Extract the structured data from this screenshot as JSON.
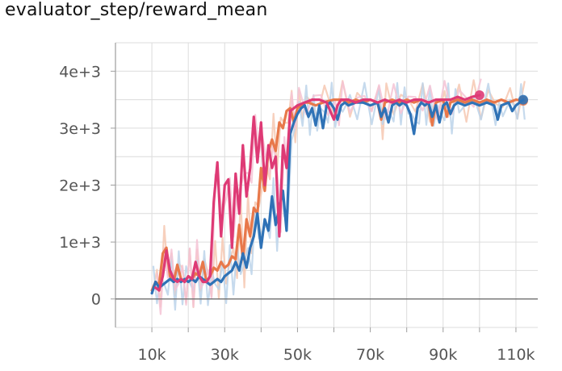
{
  "title": "evaluator_step/reward_mean",
  "colors": {
    "grid": "#dcdcdc",
    "axis": "#9e9e9e",
    "zero_line": "#707070",
    "ticks_text": "#555555",
    "series_blue": "#2f72b6",
    "series_orange": "#e8784a",
    "series_pink": "#de3a75"
  },
  "chart_data": {
    "type": "line",
    "title": "evaluator_step/reward_mean",
    "xlabel": "",
    "ylabel": "",
    "xlim": [
      0,
      116000
    ],
    "ylim": [
      -500,
      4500
    ],
    "grid": true,
    "legend": "none",
    "x_ticks": [
      {
        "value": 10000,
        "label": "10k"
      },
      {
        "value": 30000,
        "label": "30k"
      },
      {
        "value": 50000,
        "label": "50k"
      },
      {
        "value": 70000,
        "label": "70k"
      },
      {
        "value": 90000,
        "label": "90k"
      },
      {
        "value": 110000,
        "label": "110k"
      }
    ],
    "y_ticks": [
      {
        "value": 0,
        "label": "0"
      },
      {
        "value": 1000,
        "label": "1e+3"
      },
      {
        "value": 2000,
        "label": "2e+3"
      },
      {
        "value": 3000,
        "label": "3e+3"
      },
      {
        "value": 4000,
        "label": "4e+3"
      }
    ],
    "series": [
      {
        "color": "#e8784a",
        "raw_color": "#f6c8b2",
        "end_marker": true,
        "points": [
          [
            10000,
            150
          ],
          [
            11000,
            300
          ],
          [
            12000,
            250
          ],
          [
            13000,
            800
          ],
          [
            14000,
            900
          ],
          [
            15000,
            400
          ],
          [
            16000,
            300
          ],
          [
            17000,
            600
          ],
          [
            18000,
            350
          ],
          [
            19000,
            300
          ],
          [
            20000,
            400
          ],
          [
            21000,
            350
          ],
          [
            22000,
            450
          ],
          [
            23000,
            400
          ],
          [
            24000,
            650
          ],
          [
            25000,
            300
          ],
          [
            26000,
            400
          ],
          [
            27000,
            550
          ],
          [
            28000,
            500
          ],
          [
            29000,
            650
          ],
          [
            30000,
            550
          ],
          [
            31000,
            600
          ],
          [
            32000,
            750
          ],
          [
            33000,
            700
          ],
          [
            34000,
            1300
          ],
          [
            35000,
            700
          ],
          [
            36000,
            1400
          ],
          [
            37000,
            1100
          ],
          [
            38000,
            1600
          ],
          [
            39000,
            1500
          ],
          [
            40000,
            2300
          ],
          [
            41000,
            1900
          ],
          [
            42000,
            2600
          ],
          [
            43000,
            2800
          ],
          [
            44000,
            2600
          ],
          [
            45000,
            3100
          ],
          [
            46000,
            3000
          ],
          [
            47000,
            3300
          ],
          [
            48000,
            3350
          ],
          [
            49000,
            3100
          ],
          [
            50000,
            3350
          ],
          [
            51000,
            3400
          ],
          [
            52000,
            3450
          ],
          [
            53000,
            3450
          ],
          [
            55000,
            3400
          ],
          [
            57000,
            3450
          ],
          [
            60000,
            3500
          ],
          [
            62000,
            3500
          ],
          [
            64000,
            3450
          ],
          [
            66000,
            3500
          ],
          [
            68000,
            3450
          ],
          [
            70000,
            3500
          ],
          [
            72000,
            3450
          ],
          [
            73000,
            3150
          ],
          [
            74000,
            3450
          ],
          [
            76000,
            3500
          ],
          [
            78000,
            3450
          ],
          [
            80000,
            3500
          ],
          [
            82000,
            3450
          ],
          [
            84000,
            3500
          ],
          [
            86000,
            3450
          ],
          [
            87000,
            3050
          ],
          [
            88000,
            3450
          ],
          [
            90000,
            3500
          ],
          [
            91000,
            3200
          ],
          [
            92000,
            3450
          ],
          [
            94000,
            3500
          ],
          [
            96000,
            3450
          ],
          [
            98000,
            3500
          ],
          [
            100000,
            3450
          ],
          [
            102000,
            3500
          ],
          [
            104000,
            3450
          ],
          [
            106000,
            3500
          ],
          [
            108000,
            3450
          ],
          [
            110000,
            3500
          ],
          [
            112000,
            3480
          ]
        ]
      },
      {
        "color": "#2f72b6",
        "raw_color": "#bcd3ea",
        "end_marker": true,
        "points": [
          [
            10000,
            100
          ],
          [
            11000,
            300
          ],
          [
            12000,
            200
          ],
          [
            13000,
            250
          ],
          [
            14000,
            300
          ],
          [
            15000,
            350
          ],
          [
            16000,
            300
          ],
          [
            17000,
            350
          ],
          [
            18000,
            300
          ],
          [
            19000,
            350
          ],
          [
            20000,
            300
          ],
          [
            21000,
            350
          ],
          [
            22000,
            300
          ],
          [
            23000,
            400
          ],
          [
            24000,
            350
          ],
          [
            25000,
            300
          ],
          [
            26000,
            250
          ],
          [
            27000,
            300
          ],
          [
            28000,
            350
          ],
          [
            29000,
            300
          ],
          [
            30000,
            400
          ],
          [
            31000,
            450
          ],
          [
            32000,
            500
          ],
          [
            33000,
            650
          ],
          [
            34000,
            500
          ],
          [
            35000,
            800
          ],
          [
            36000,
            550
          ],
          [
            37000,
            900
          ],
          [
            38000,
            1100
          ],
          [
            39000,
            1500
          ],
          [
            40000,
            900
          ],
          [
            41000,
            1400
          ],
          [
            42000,
            1200
          ],
          [
            43000,
            1800
          ],
          [
            44000,
            1300
          ],
          [
            45000,
            1600
          ],
          [
            46000,
            1900
          ],
          [
            47000,
            1200
          ],
          [
            48000,
            2900
          ],
          [
            49000,
            3100
          ],
          [
            50000,
            3250
          ],
          [
            51000,
            3350
          ],
          [
            52000,
            3400
          ],
          [
            53000,
            3200
          ],
          [
            54000,
            3350
          ],
          [
            55000,
            3050
          ],
          [
            56000,
            3400
          ],
          [
            57000,
            3000
          ],
          [
            58000,
            3400
          ],
          [
            59000,
            3450
          ],
          [
            60000,
            3350
          ],
          [
            61000,
            3150
          ],
          [
            62000,
            3400
          ],
          [
            63000,
            3450
          ],
          [
            64000,
            3400
          ],
          [
            66000,
            3450
          ],
          [
            68000,
            3450
          ],
          [
            70000,
            3400
          ],
          [
            72000,
            3450
          ],
          [
            73000,
            3200
          ],
          [
            74000,
            3350
          ],
          [
            75000,
            3100
          ],
          [
            76000,
            3400
          ],
          [
            77000,
            3450
          ],
          [
            78000,
            3400
          ],
          [
            79000,
            3450
          ],
          [
            80000,
            3400
          ],
          [
            81000,
            3250
          ],
          [
            82000,
            2900
          ],
          [
            83000,
            3350
          ],
          [
            84000,
            3450
          ],
          [
            85000,
            3400
          ],
          [
            86000,
            3450
          ],
          [
            87000,
            3200
          ],
          [
            88000,
            3400
          ],
          [
            89000,
            3100
          ],
          [
            90000,
            3400
          ],
          [
            91000,
            3450
          ],
          [
            92000,
            3250
          ],
          [
            93000,
            3400
          ],
          [
            94000,
            3450
          ],
          [
            96000,
            3400
          ],
          [
            98000,
            3450
          ],
          [
            100000,
            3400
          ],
          [
            102000,
            3450
          ],
          [
            104000,
            3400
          ],
          [
            105000,
            3150
          ],
          [
            106000,
            3400
          ],
          [
            108000,
            3450
          ],
          [
            109000,
            3300
          ],
          [
            110000,
            3400
          ],
          [
            111000,
            3450
          ],
          [
            112000,
            3500
          ]
        ]
      },
      {
        "color": "#de3a75",
        "raw_color": "#f4c3d5",
        "end_marker": true,
        "points": [
          [
            11000,
            200
          ],
          [
            12000,
            150
          ],
          [
            13000,
            400
          ],
          [
            14000,
            850
          ],
          [
            15000,
            500
          ],
          [
            16000,
            350
          ],
          [
            17000,
            300
          ],
          [
            18000,
            350
          ],
          [
            19000,
            300
          ],
          [
            20000,
            400
          ],
          [
            21000,
            350
          ],
          [
            22000,
            650
          ],
          [
            23000,
            400
          ],
          [
            24000,
            300
          ],
          [
            25000,
            300
          ],
          [
            26000,
            400
          ],
          [
            27000,
            1700
          ],
          [
            28000,
            2400
          ],
          [
            29000,
            1100
          ],
          [
            30000,
            2000
          ],
          [
            31000,
            2100
          ],
          [
            32000,
            900
          ],
          [
            33000,
            2200
          ],
          [
            34000,
            1500
          ],
          [
            35000,
            2700
          ],
          [
            36000,
            1800
          ],
          [
            37000,
            2300
          ],
          [
            38000,
            3200
          ],
          [
            39000,
            2400
          ],
          [
            40000,
            3100
          ],
          [
            41000,
            2000
          ],
          [
            42000,
            2700
          ],
          [
            43000,
            2300
          ],
          [
            44000,
            2500
          ],
          [
            45000,
            1100
          ],
          [
            46000,
            2700
          ],
          [
            47000,
            2300
          ],
          [
            48000,
            3300
          ],
          [
            49000,
            3350
          ],
          [
            50000,
            3400
          ],
          [
            52000,
            3450
          ],
          [
            54000,
            3500
          ],
          [
            56000,
            3500
          ],
          [
            58000,
            3450
          ],
          [
            60000,
            3150
          ],
          [
            61000,
            3400
          ],
          [
            62000,
            3500
          ],
          [
            64000,
            3500
          ],
          [
            66000,
            3450
          ],
          [
            68000,
            3500
          ],
          [
            70000,
            3500
          ],
          [
            72000,
            3450
          ],
          [
            74000,
            3500
          ],
          [
            76000,
            3450
          ],
          [
            78000,
            3500
          ],
          [
            80000,
            3450
          ],
          [
            82000,
            3500
          ],
          [
            84000,
            3500
          ],
          [
            86000,
            3450
          ],
          [
            88000,
            3500
          ],
          [
            90000,
            3500
          ],
          [
            92000,
            3500
          ],
          [
            94000,
            3550
          ],
          [
            96000,
            3500
          ],
          [
            98000,
            3550
          ],
          [
            100000,
            3580
          ]
        ]
      }
    ]
  }
}
